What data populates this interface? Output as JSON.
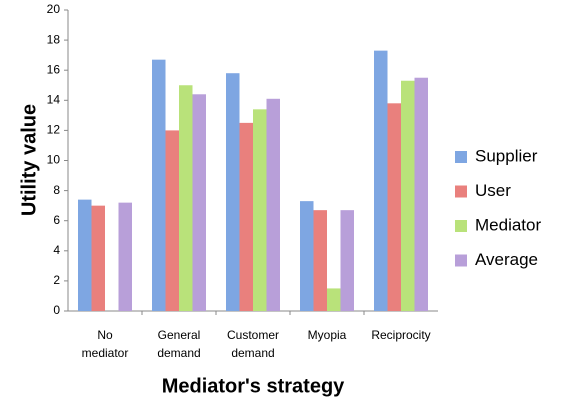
{
  "chart_data": {
    "type": "bar",
    "categories": [
      "No mediator",
      "General demand",
      "Customer demand",
      "Myopia",
      "Reciprocity"
    ],
    "series": [
      {
        "name": "Supplier",
        "color": "#7ea6e2",
        "values": [
          7.4,
          16.7,
          15.8,
          7.3,
          17.3
        ]
      },
      {
        "name": "User",
        "color": "#e9807d",
        "values": [
          7.0,
          12.0,
          12.5,
          6.7,
          13.8
        ]
      },
      {
        "name": "Mediator",
        "color": "#b9e27a",
        "values": [
          0,
          15.0,
          13.4,
          1.5,
          15.3
        ]
      },
      {
        "name": "Average",
        "color": "#b89fd9",
        "values": [
          7.2,
          14.4,
          14.1,
          6.7,
          15.5
        ]
      }
    ],
    "y_label": "Utility value",
    "x_label": "Mediator's strategy",
    "ylim": [
      0,
      20
    ],
    "yticks": [
      0,
      2,
      4,
      6,
      8,
      10,
      12,
      14,
      16,
      18,
      20
    ],
    "grid": false,
    "legend": "right"
  }
}
